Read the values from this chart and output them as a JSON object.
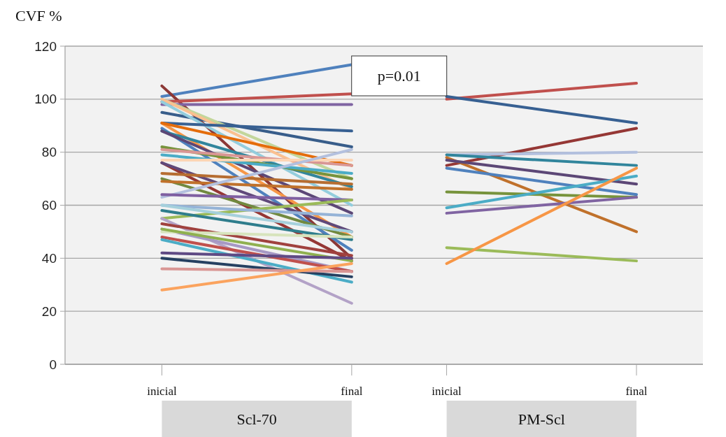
{
  "chart_data": {
    "type": "line",
    "ylabel": "CVF %",
    "categories": [
      "inicial",
      null,
      "final",
      "inicial",
      null,
      "final"
    ],
    "ylim": [
      0,
      120
    ],
    "yticks": [
      0,
      20,
      40,
      60,
      80,
      100,
      120
    ],
    "grid": "y",
    "line_style": "solid",
    "marker": "none",
    "annotations": [
      "p=0.01",
      "Scl-70",
      "PM-Scl"
    ],
    "series": [
      {
        "color": "#4f81bd",
        "values": [
          101,
          null,
          113,
          null,
          null,
          null
        ]
      },
      {
        "color": "#8c3836",
        "values": [
          105,
          null,
          40,
          null,
          null,
          null
        ]
      },
      {
        "color": "#c0504d",
        "values": [
          99,
          null,
          102,
          null,
          null,
          null
        ]
      },
      {
        "color": "#8064a2",
        "values": [
          98,
          null,
          98,
          null,
          null,
          null
        ]
      },
      {
        "color": "#385d8a",
        "values": [
          95,
          null,
          82,
          null,
          null,
          null
        ]
      },
      {
        "color": "#c3d69b",
        "values": [
          100,
          null,
          70,
          null,
          null,
          null
        ]
      },
      {
        "color": "#fac090",
        "values": [
          100,
          null,
          66,
          null,
          null,
          null
        ]
      },
      {
        "color": "#93cddd",
        "values": [
          99,
          null,
          60,
          null,
          null,
          null
        ]
      },
      {
        "color": "#376092",
        "values": [
          91,
          null,
          88,
          null,
          null,
          null
        ]
      },
      {
        "color": "#f79646",
        "values": [
          91,
          null,
          48,
          null,
          null,
          null
        ]
      },
      {
        "color": "#e46c0a",
        "values": [
          91,
          null,
          75,
          null,
          null,
          null
        ]
      },
      {
        "color": "#4f81bd",
        "values": [
          89,
          null,
          43,
          null,
          null,
          null
        ]
      },
      {
        "color": "#31859c",
        "values": [
          88,
          null,
          67,
          null,
          null,
          null
        ]
      },
      {
        "color": "#5c4776",
        "values": [
          88,
          null,
          57,
          null,
          null,
          null
        ]
      },
      {
        "color": "#77933c",
        "values": [
          82,
          null,
          70,
          null,
          null,
          null
        ]
      },
      {
        "color": "#d99694",
        "values": [
          81,
          null,
          75,
          null,
          null,
          null
        ]
      },
      {
        "color": "#4bacc6",
        "values": [
          79,
          null,
          72,
          null,
          null,
          null
        ]
      },
      {
        "color": "#fcd5b5",
        "values": [
          77,
          null,
          77,
          null,
          null,
          null
        ]
      },
      {
        "color": "#953735",
        "values": [
          76,
          null,
          39,
          null,
          null,
          null
        ]
      },
      {
        "color": "#60497a",
        "values": [
          76,
          null,
          50,
          null,
          null,
          null
        ]
      },
      {
        "color": "#b66d31",
        "values": [
          72,
          null,
          68,
          null,
          null,
          null
        ]
      },
      {
        "color": "#71893f",
        "values": [
          70,
          null,
          48,
          null,
          null,
          null
        ]
      },
      {
        "color": "#c0712b",
        "values": [
          69,
          null,
          66,
          null,
          null,
          null
        ]
      },
      {
        "color": "#b3c0de",
        "values": [
          63,
          null,
          81,
          null,
          null,
          null
        ]
      },
      {
        "color": "#7f5fa1",
        "values": [
          64,
          null,
          62,
          null,
          null,
          null
        ]
      },
      {
        "color": "#9bbb59",
        "values": [
          55,
          null,
          62,
          null,
          null,
          null
        ]
      },
      {
        "color": "#95b3d7",
        "values": [
          60,
          null,
          56,
          null,
          null,
          null
        ]
      },
      {
        "color": "#a5d0dc",
        "values": [
          60,
          null,
          50,
          null,
          null,
          null
        ]
      },
      {
        "color": "#2f7d8c",
        "values": [
          58,
          null,
          47,
          null,
          null,
          null
        ]
      },
      {
        "color": "#b3a2c7",
        "values": [
          55,
          null,
          23,
          null,
          null,
          null
        ]
      },
      {
        "color": "#a0413e",
        "values": [
          53,
          null,
          41,
          null,
          null,
          null
        ]
      },
      {
        "color": "#a698c4",
        "values": [
          51,
          null,
          35,
          null,
          null,
          null
        ]
      },
      {
        "color": "#d7e4bd",
        "values": [
          50,
          null,
          48,
          null,
          null,
          null
        ]
      },
      {
        "color": "#8fb04f",
        "values": [
          51,
          null,
          39,
          null,
          null,
          null
        ]
      },
      {
        "color": "#c0504d",
        "values": [
          48,
          null,
          35,
          null,
          null,
          null
        ]
      },
      {
        "color": "#4bacc6",
        "values": [
          47,
          null,
          31,
          null,
          null,
          null
        ]
      },
      {
        "color": "#5f4a84",
        "values": [
          42,
          null,
          40,
          null,
          null,
          null
        ]
      },
      {
        "color": "#254061",
        "values": [
          40,
          null,
          33,
          null,
          null,
          null
        ]
      },
      {
        "color": "#d99694",
        "values": [
          36,
          null,
          35,
          null,
          null,
          null
        ]
      },
      {
        "color": "#fba35e",
        "values": [
          28,
          null,
          38,
          null,
          null,
          null
        ]
      },
      {
        "color": "#c0504d",
        "values": [
          null,
          null,
          null,
          100,
          null,
          106
        ]
      },
      {
        "color": "#376092",
        "values": [
          null,
          null,
          null,
          101,
          null,
          91
        ]
      },
      {
        "color": "#953735",
        "values": [
          null,
          null,
          null,
          75,
          null,
          89
        ]
      },
      {
        "color": "#b3c0de",
        "values": [
          null,
          null,
          null,
          79,
          null,
          80
        ]
      },
      {
        "color": "#31859c",
        "values": [
          null,
          null,
          null,
          79,
          null,
          75
        ]
      },
      {
        "color": "#c0712b",
        "values": [
          null,
          null,
          null,
          78,
          null,
          50
        ]
      },
      {
        "color": "#5c4776",
        "values": [
          null,
          null,
          null,
          77,
          null,
          68
        ]
      },
      {
        "color": "#4f81bd",
        "values": [
          null,
          null,
          null,
          74,
          null,
          64
        ]
      },
      {
        "color": "#77933c",
        "values": [
          null,
          null,
          null,
          65,
          null,
          63
        ]
      },
      {
        "color": "#4bacc6",
        "values": [
          null,
          null,
          null,
          59,
          null,
          71
        ]
      },
      {
        "color": "#8064a2",
        "values": [
          null,
          null,
          null,
          57,
          null,
          63
        ]
      },
      {
        "color": "#9bbb59",
        "values": [
          null,
          null,
          null,
          44,
          null,
          39
        ]
      },
      {
        "color": "#f79646",
        "values": [
          null,
          null,
          null,
          38,
          null,
          74
        ]
      }
    ]
  }
}
